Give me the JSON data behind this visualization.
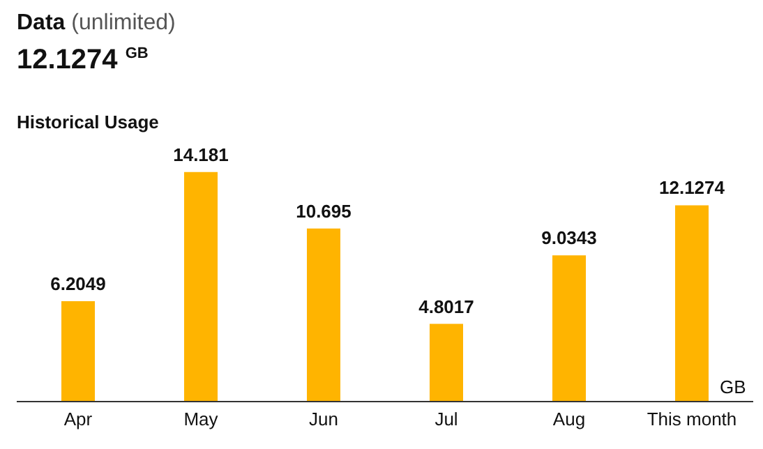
{
  "chart_data": {
    "type": "bar",
    "title": "Data",
    "subtitle": "(unlimited)",
    "annotations": [
      "12.1274 $^{GB}$",
      "Historical Usage"
    ],
    "ylabel": "GB",
    "categories": [
      "Apr",
      "May",
      "Jun",
      "Jul",
      "Aug",
      "This month"
    ],
    "values": [
      6.2049,
      14.181,
      10.695,
      4.8017,
      9.0343,
      12.1274
    ],
    "color": "#ffb400",
    "data_labels": true,
    "grid": false,
    "tick_labels": "x"
  }
}
